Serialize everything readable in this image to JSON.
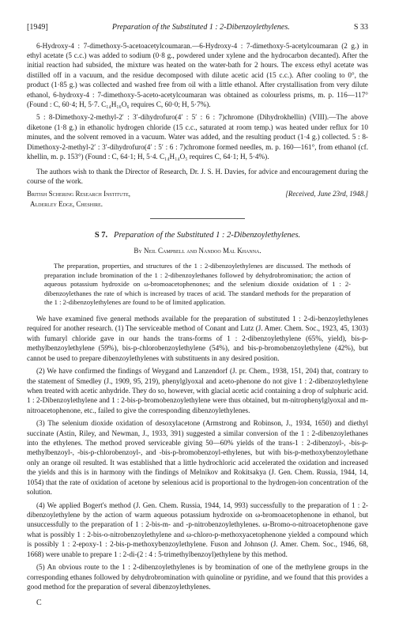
{
  "header": {
    "year": "[1949]",
    "running_title": "Preparation of the Substituted 1 : 2-Dibenzoylethylenes.",
    "page": "S 33"
  },
  "top_block": {
    "p1": "6-Hydroxy-4 : 7-dimethoxy-5-acetoacetylcoumaran.—6-Hydroxy-4 : 7-dimethoxy-5-acetylcoumaran (2 g.) in ethyl acetate (5 c.c.) was added to sodium (0·8 g., powdered under xylene and the hydrocarbon decanted). After the initial reaction had subsided, the mixture was heated on the water-bath for 2 hours. The excess ethyl acetate was distilled off in a vacuum, and the residue decomposed with dilute acetic acid (15 c.c.). After cooling to 0°, the product (1·85 g.) was collected and washed free from oil with a little ethanol. After crystallisation from very dilute ethanol, 6-hydroxy-4 : 7-dimethoxy-5-aceto-acetylcoumaran was obtained as colourless prisms, m. p. 116—117° (Found : C, 60·4; H, 5·7. C₁₄H₁₆O₆ requires C, 60·0; H, 5·7%).",
    "p2": "5 : 8-Dimethoxy-2-methyl-2′ : 3′-dihydrofuro(4′ : 5′ : 6 : 7)chromone (Dihydrokhellin) (VIII).—The above diketone (1·8 g.) in ethanolic hydrogen chloride (15 c.c., saturated at room temp.) was heated under reflux for 10 minutes, and the solvent removed in a vacuum. Water was added, and the resulting product (1·4 g.) collected. 5 : 8-Dimethoxy-2-methyl-2′ : 3′-dihydrofuro(4′ : 5′ : 6 : 7)chromone formed needles, m. p. 160—161°, from ethanol (cf. khellin, m. p. 153°) (Found : C, 64·1; H, 5·4. C₁₄H₁₄O₅ requires C, 64·1; H, 5·4%)."
  },
  "acknowledgement": "The authors wish to thank the Director of Research, Dr. J. S. H. Davies, for advice and encouragement during the course of the work.",
  "institute": {
    "lines": "British Schering Research Institute,\n  Alderley Edge, Cheshire.",
    "received": "[Received, June 23rd, 1948.]"
  },
  "section": {
    "number": "S 7.",
    "title": "Preparation of the Substituted 1 : 2-Dibenzoylethylenes.",
    "authors": "By Neil Campbell and Nandoo Mal Khanna."
  },
  "abstract": "The preparation, properties, and structures of the 1 : 2-dibenzoylethylenes are discussed. The methods of preparation include bromination of the 1 : 2-dibenzoylethanes followed by dehydrobromination; the action of aqueous potassium hydroxide on ω-bromoacetophenones; and the selenium dioxide oxidation of 1 : 2-dibenzoylethanes the rate of which is increased by traces of acid. The standard methods for the preparation of the 1 : 2-dibenzoylethylenes are found to be of limited application.",
  "body": {
    "p1": "We have examined five general methods available for the preparation of substituted 1 : 2-di-benzoylethylenes required for another research. (1) The serviceable method of Conant and Lutz (J. Amer. Chem. Soc., 1923, 45, 1303) with fumaryl chloride gave in our hands the trans-forms of 1 : 2-dibenzoylethylene (65%, yield), bis-p-methylbenzoylethylene (59%), bis-p-chlorobenzoylethylene (54%), and bis-p-bromobenzoylethylene (42%), but cannot be used to prepare dibenzoylethylenes with substituents in any desired position.",
    "p2": "(2) We have confirmed the findings of Weygand and Lanzendorf (J. pr. Chem., 1938, 151, 204) that, contrary to the statement of Smedley (J., 1909, 95, 219), phenylglyoxal and aceto-phenone do not give 1 : 2-dibenzoylethylene when treated with acetic anhydride. They do so, however, with glacial acetic acid containing a drop of sulphuric acid. 1 : 2-Dibenzoylethylene and 1 : 2-bis-p-bromobenzoylethylene were thus obtained, but m-nitrophenylglyoxal and m-nitroacetophenone, etc., failed to give the corresponding dibenzoylethylenes.",
    "p3": "(3) The selenium dioxide oxidation of desoxylacetone (Armstrong and Robinson, J., 1934, 1650) and diethyl succinate (Astin, Riley, and Newman, J., 1933, 391) suggested a similar conversion of the 1 : 2-dibenzoylethanes into the ethylenes. The method proved serviceable giving 50—60% yields of the trans-1 : 2-dibenzoyl-, -bis-p-methylbenzoyl-, -bis-p-chlorobenzoyl-, and -bis-p-bromobenzoyl-ethylenes, but with bis-p-methoxybenzoylethane only an orange oil resulted. It was established that a little hydrochloric acid accelerated the oxidation and increased the yields and this is in harmony with the findings of Melnikov and Rokitsakya (J. Gen. Chem. Russia, 1944, 14, 1054) that the rate of oxidation of acetone by selenious acid is proportional to the hydrogen-ion concentration of the solution.",
    "p4": "(4) We applied Bogert's method (J. Gen. Chem. Russia, 1944, 14, 993) successfully to the preparation of 1 : 2-dibenzoylethylene by the action of warm aqueous potassium hydroxide on ω-bromoacetophenone in ethanol, but unsuccessfully to the preparation of 1 : 2-bis-m- and -p-nitrobenzoylethylenes. ω-Bromo-o-nitroacetophenone gave what is possibly 1 : 2-bis-o-nitrobenzoylethylene and ω-chloro-p-methoxyacetophenone yielded a compound which is possibly 1 : 2-epoxy-1 : 2-bis-p-methoxybenzoylethylene. Fuson and Johnson (J. Amer. Chem. Soc., 1946, 68, 1668) were unable to prepare 1 : 2-di-(2 : 4 : 5-trimethylbenzoyl)ethylene by this method.",
    "p5": "(5) An obvious route to the 1 : 2-dibenzoylethylenes is by bromination of one of the methylene groups in the corresponding ethanes followed by dehydrobromination with quinoline or pyridine, and we found that this provides a good method for the preparation of several dibenzoylethylenes."
  },
  "footer_letter": "C"
}
